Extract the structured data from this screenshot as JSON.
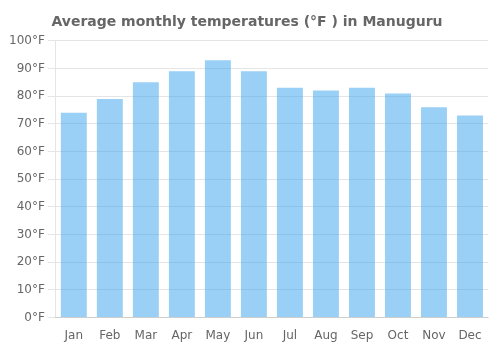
{
  "chart_data": {
    "type": "bar",
    "title": "Average monthly temperatures (°F ) in Manuguru",
    "categories": [
      "Jan",
      "Feb",
      "Mar",
      "Apr",
      "May",
      "Jun",
      "Jul",
      "Aug",
      "Sep",
      "Oct",
      "Nov",
      "Dec"
    ],
    "values": [
      74,
      79,
      85,
      89,
      93,
      89,
      83,
      82,
      83,
      81,
      76,
      73
    ],
    "ylim": [
      0,
      100
    ],
    "yticks": [
      {
        "value": 0,
        "label": "0°F"
      },
      {
        "value": 10,
        "label": "10°F"
      },
      {
        "value": 20,
        "label": "20°F"
      },
      {
        "value": 30,
        "label": "30°F"
      },
      {
        "value": 40,
        "label": "40°F"
      },
      {
        "value": 50,
        "label": "50°F"
      },
      {
        "value": 60,
        "label": "60°F"
      },
      {
        "value": 70,
        "label": "70°F"
      },
      {
        "value": 80,
        "label": "80°F"
      },
      {
        "value": 90,
        "label": "90°F"
      },
      {
        "value": 100,
        "label": "100°F"
      }
    ],
    "grid": true
  }
}
